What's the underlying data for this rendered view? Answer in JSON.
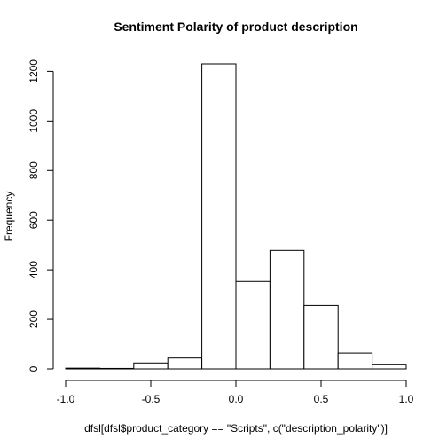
{
  "chart_data": {
    "type": "bar",
    "title": "Sentiment Polarity of product description",
    "xlabel": "dfsl[dfsl$product_category == \"Scripts\", c(\"description_polarity\")]",
    "ylabel": "Frequency",
    "bins": [
      {
        "x0": -1.0,
        "x1": -0.8,
        "value": 3
      },
      {
        "x0": -0.8,
        "x1": -0.6,
        "value": 2
      },
      {
        "x0": -0.6,
        "x1": -0.4,
        "value": 24
      },
      {
        "x0": -0.4,
        "x1": -0.2,
        "value": 44
      },
      {
        "x0": -0.2,
        "x1": 0.0,
        "value": 1230
      },
      {
        "x0": 0.0,
        "x1": 0.2,
        "value": 353
      },
      {
        "x0": 0.2,
        "x1": 0.4,
        "value": 478
      },
      {
        "x0": 0.4,
        "x1": 0.6,
        "value": 256
      },
      {
        "x0": 0.6,
        "x1": 0.8,
        "value": 64
      },
      {
        "x0": 0.8,
        "x1": 1.0,
        "value": 19
      }
    ],
    "xlim": [
      -1.0,
      1.0
    ],
    "ylim": [
      0,
      1230
    ],
    "x_ticks": [
      -1.0,
      -0.5,
      0.0,
      0.5,
      1.0
    ],
    "x_tick_labels": [
      "-1.0",
      "-0.5",
      "0.0",
      "0.5",
      "1.0"
    ],
    "y_ticks": [
      0,
      200,
      400,
      600,
      800,
      1000,
      1200
    ],
    "y_tick_labels": [
      "0",
      "200",
      "400",
      "600",
      "800",
      "1000",
      "1200"
    ],
    "grid": false
  }
}
